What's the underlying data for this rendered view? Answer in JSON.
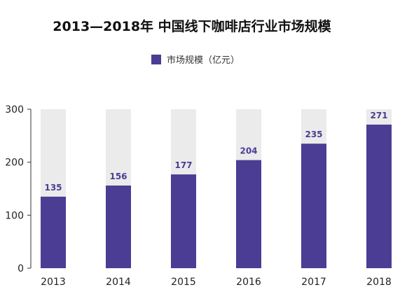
{
  "chart_data": {
    "type": "bar",
    "title": "2013—2018年 中国线下咖啡店行业市场规模",
    "categories": [
      "2013",
      "2014",
      "2015",
      "2016",
      "2017",
      "2018"
    ],
    "series": [
      {
        "name": "市场规模（亿元）",
        "values": [
          135,
          156,
          177,
          204,
          235,
          271
        ]
      }
    ],
    "ylim": [
      0,
      300
    ],
    "yticks": [
      0,
      100,
      200,
      300
    ],
    "background_bar_value": 300,
    "legend_position": "top-center",
    "grid": false,
    "colors": {
      "bar": "#4b3d94",
      "background_bar": "#ebebeb",
      "label": "#4b3d94"
    }
  }
}
